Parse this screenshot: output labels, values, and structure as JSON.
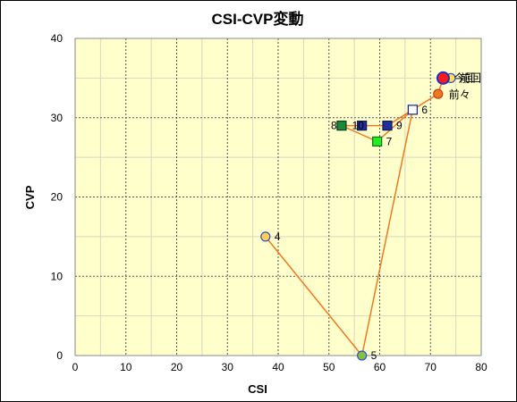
{
  "chart_data": {
    "type": "scatter",
    "title": "CSI-CVP変動",
    "xlabel": "CSI",
    "ylabel": "CVP",
    "xlim": [
      0,
      80
    ],
    "ylim": [
      0,
      40
    ],
    "xticks": [
      0,
      10,
      20,
      30,
      40,
      50,
      60,
      70,
      80
    ],
    "yticks": [
      0,
      10,
      20,
      30,
      40
    ],
    "grid": true,
    "plot_background": "#ffffcc",
    "line_color": "#f07820",
    "points": [
      {
        "label": "4",
        "x": 37.5,
        "y": 15.0,
        "marker": "circle",
        "fill": "#ffd24a",
        "stroke": "#3050d0"
      },
      {
        "label": "5",
        "x": 56.5,
        "y": 0.0,
        "marker": "circle",
        "fill": "#86c23c",
        "stroke": "#3050d0"
      },
      {
        "label": "6",
        "x": 66.5,
        "y": 31.0,
        "marker": "square",
        "fill": "#ffffff",
        "stroke": "#1020a0"
      },
      {
        "label": "7",
        "x": 59.5,
        "y": 27.0,
        "marker": "square",
        "fill": "#22ee22",
        "stroke": "#1a6a1a"
      },
      {
        "label": "8",
        "x": 52.5,
        "y": 29.0,
        "marker": "square",
        "fill": "#1a8a3a",
        "stroke": "#0a3a1a"
      },
      {
        "label": "9",
        "x": 61.5,
        "y": 29.0,
        "marker": "square",
        "fill": "#1f2f9f",
        "stroke": "#101850"
      },
      {
        "label": "10",
        "x": 56.5,
        "y": 29.0,
        "marker": "square",
        "fill": "#1f2f9f",
        "stroke": "#101850"
      },
      {
        "label": "前々",
        "x": 71.5,
        "y": 33.0,
        "marker": "circle",
        "fill": "#f07820",
        "stroke": "#c04010"
      },
      {
        "label": "前回",
        "x": 74.0,
        "y": 35.0,
        "marker": "circle",
        "fill": "#ffe050",
        "stroke": "#3050d0"
      },
      {
        "label": "今回",
        "x": 72.5,
        "y": 35.0,
        "marker": "circle",
        "fill": "#ff1a1a",
        "stroke": "#2030c0"
      }
    ],
    "line_order": [
      "4",
      "5",
      "6",
      "7",
      "8",
      "9",
      "前々",
      "今回"
    ]
  }
}
